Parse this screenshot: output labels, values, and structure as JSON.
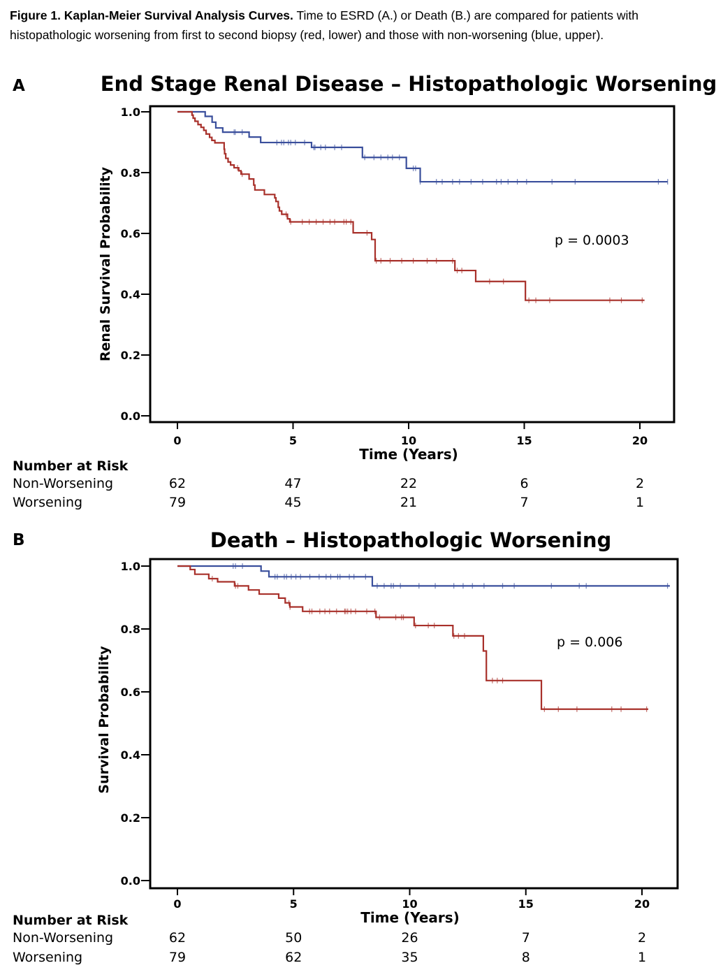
{
  "caption": {
    "label": "Figure 1. Kaplan-Meier Survival Analysis Curves.",
    "text": " Time to ESRD (A.) or Death (B.) are compared for patients with histopathologic worsening from first to second biopsy (red, lower) and those with non-worsening (blue, upper)."
  },
  "colors": {
    "non_worsening": "#3a4f9c",
    "worsening": "#a8302a"
  },
  "chart_data": [
    {
      "type": "line",
      "panel": "A",
      "title": "End Stage Renal Disease – Histopathologic Worsening",
      "xlabel": "Time (Years)",
      "ylabel": "Renal Survival Probability",
      "xlim": [
        -2.3,
        21.8
      ],
      "ylim": [
        0,
        1.0
      ],
      "xticks": [
        0,
        5,
        10,
        15,
        20
      ],
      "yticks": [
        0.0,
        0.2,
        0.4,
        0.6,
        0.8,
        1.0
      ],
      "ytick_labels": [
        "0.0",
        "0.2",
        "0.4",
        "0.6",
        "0.8",
        "1.0"
      ],
      "annotation": "p  = 0.0003",
      "risk_table": {
        "header": "Number at Risk",
        "rows": [
          {
            "label": "Non-Worsening",
            "values": [
              62,
              47,
              22,
              6,
              2
            ]
          },
          {
            "label": "Worsening",
            "values": [
              79,
              45,
              21,
              7,
              1
            ]
          }
        ]
      },
      "series": [
        {
          "name": "Non-Worsening",
          "color": "#3a4f9c",
          "steps": [
            [
              0,
              1.0
            ],
            [
              1.2,
              0.985
            ],
            [
              1.5,
              0.966
            ],
            [
              1.66,
              0.947
            ],
            [
              1.96,
              0.933
            ],
            [
              3.1,
              0.917
            ],
            [
              3.6,
              0.899
            ],
            [
              5.8,
              0.883
            ],
            [
              8.0,
              0.85
            ],
            [
              9.9,
              0.814
            ],
            [
              10.5,
              0.77
            ]
          ],
          "end": 21.2,
          "censored": [
            2.45,
            2.5,
            2.8,
            4.3,
            4.5,
            4.6,
            4.8,
            4.9,
            5.1,
            5.5,
            5.9,
            5.95,
            6.2,
            6.4,
            6.8,
            7.1,
            8.1,
            8.5,
            8.8,
            9.1,
            9.3,
            9.6,
            10.2,
            10.3,
            10.5,
            11.2,
            11.45,
            11.9,
            12.2,
            12.7,
            13.2,
            13.8,
            14.0,
            14.3,
            14.7,
            15.1,
            16.2,
            17.2,
            20.8,
            21.2
          ]
        },
        {
          "name": "Worsening",
          "color": "#a8302a",
          "steps": [
            [
              0,
              1.0
            ],
            [
              0.63,
              0.989
            ],
            [
              0.68,
              0.979
            ],
            [
              0.76,
              0.969
            ],
            [
              0.89,
              0.958
            ],
            [
              1.02,
              0.949
            ],
            [
              1.14,
              0.939
            ],
            [
              1.24,
              0.927
            ],
            [
              1.39,
              0.916
            ],
            [
              1.49,
              0.906
            ],
            [
              1.62,
              0.898
            ],
            [
              2.02,
              0.877
            ],
            [
              2.04,
              0.862
            ],
            [
              2.09,
              0.847
            ],
            [
              2.19,
              0.835
            ],
            [
              2.3,
              0.825
            ],
            [
              2.45,
              0.816
            ],
            [
              2.65,
              0.806
            ],
            [
              2.75,
              0.795
            ],
            [
              3.1,
              0.779
            ],
            [
              3.3,
              0.759
            ],
            [
              3.35,
              0.743
            ],
            [
              3.76,
              0.728
            ],
            [
              4.21,
              0.717
            ],
            [
              4.26,
              0.705
            ],
            [
              4.36,
              0.686
            ],
            [
              4.41,
              0.674
            ],
            [
              4.51,
              0.663
            ],
            [
              4.76,
              0.648
            ],
            [
              4.86,
              0.638
            ],
            [
              7.6,
              0.602
            ],
            [
              8.4,
              0.58
            ],
            [
              8.55,
              0.51
            ],
            [
              12.0,
              0.478
            ],
            [
              12.9,
              0.442
            ],
            [
              15.05,
              0.38
            ]
          ],
          "end": 20.2,
          "censored": [
            2.6,
            2.8,
            4.7,
            4.9,
            5.4,
            5.7,
            6.0,
            6.3,
            6.6,
            6.8,
            7.2,
            7.3,
            7.5,
            8.2,
            8.6,
            8.8,
            9.2,
            9.7,
            10.2,
            10.8,
            11.2,
            11.9,
            12.1,
            12.3,
            13.5,
            14.1,
            15.2,
            15.5,
            16.1,
            18.7,
            19.2,
            20.1
          ]
        }
      ]
    },
    {
      "type": "line",
      "panel": "B",
      "title": "Death – Histopathologic Worsening",
      "xlabel": "Time (Years)",
      "ylabel": "Survival Probability",
      "xlim": [
        -2.3,
        21.8
      ],
      "ylim": [
        0,
        1.0
      ],
      "xticks": [
        0,
        5,
        10,
        15,
        20
      ],
      "yticks": [
        0.0,
        0.2,
        0.4,
        0.6,
        0.8,
        1.0
      ],
      "ytick_labels": [
        "0.0",
        "0.2",
        "0.4",
        "0.6",
        "0.8",
        "1.0"
      ],
      "annotation": "p  = 0.006",
      "risk_table": {
        "header": "Number at Risk",
        "rows": [
          {
            "label": "Non-Worsening",
            "values": [
              62,
              50,
              26,
              7,
              2
            ]
          },
          {
            "label": "Worsening",
            "values": [
              79,
              62,
              35,
              8,
              1
            ]
          }
        ]
      },
      "series": [
        {
          "name": "Non-Worsening",
          "color": "#3a4f9c",
          "steps": [
            [
              0,
              1.0
            ],
            [
              3.6,
              0.984
            ],
            [
              3.94,
              0.966
            ],
            [
              8.39,
              0.937
            ]
          ],
          "end": 21.2,
          "censored": [
            2.4,
            2.5,
            2.8,
            4.2,
            4.3,
            4.6,
            4.7,
            4.9,
            5.1,
            5.3,
            5.7,
            6.1,
            6.4,
            6.6,
            6.9,
            7.0,
            7.4,
            7.6,
            8.1,
            8.6,
            8.9,
            9.2,
            9.3,
            9.6,
            10.4,
            11.1,
            11.9,
            12.3,
            12.7,
            13.2,
            14.0,
            14.5,
            16.1,
            17.3,
            17.6,
            21.1
          ]
        },
        {
          "name": "Worsening",
          "color": "#a8302a",
          "steps": [
            [
              0,
              1.0
            ],
            [
              0.55,
              0.989
            ],
            [
              0.75,
              0.974
            ],
            [
              1.35,
              0.96
            ],
            [
              1.73,
              0.95
            ],
            [
              2.46,
              0.937
            ],
            [
              3.06,
              0.924
            ],
            [
              3.52,
              0.911
            ],
            [
              4.36,
              0.898
            ],
            [
              4.64,
              0.883
            ],
            [
              4.84,
              0.87
            ],
            [
              5.39,
              0.856
            ],
            [
              8.55,
              0.837
            ],
            [
              10.19,
              0.811
            ],
            [
              11.86,
              0.778
            ],
            [
              13.17,
              0.73
            ],
            [
              13.3,
              0.636
            ],
            [
              15.67,
              0.545
            ]
          ],
          "end": 20.27,
          "censored": [
            1.5,
            2.5,
            2.6,
            4.8,
            4.85,
            5.69,
            5.79,
            6.13,
            6.35,
            6.55,
            6.85,
            7.2,
            7.25,
            7.33,
            7.47,
            7.67,
            8.15,
            8.5,
            8.7,
            9.4,
            9.65,
            9.73,
            10.25,
            10.8,
            11.06,
            11.9,
            12.1,
            12.36,
            13.56,
            13.77,
            14.0,
            15.8,
            16.4,
            17.2,
            18.7,
            19.1,
            20.2
          ]
        }
      ]
    }
  ]
}
